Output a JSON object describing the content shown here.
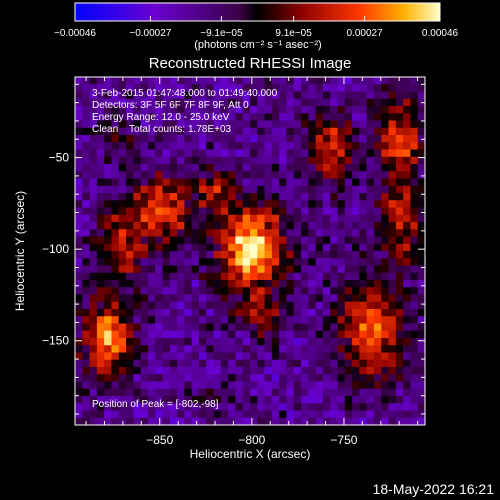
{
  "chart_data": {
    "type": "heatmap",
    "title": "Reconstructed RHESSI Image",
    "xlabel": "Heliocentric X (arcsec)",
    "ylabel": "Heliocentric Y (arcsec)",
    "xlim": [
      -896,
      -706
    ],
    "ylim": [
      -196,
      -6
    ],
    "x_ticks": [
      {
        "value": -850,
        "label": "−850"
      },
      {
        "value": -800,
        "label": "−800"
      },
      {
        "value": -750,
        "label": "−750"
      }
    ],
    "y_ticks": [
      {
        "value": -50,
        "label": "−50"
      },
      {
        "value": -100,
        "label": "−100"
      },
      {
        "value": -150,
        "label": "−150"
      }
    ],
    "annotations": [
      "3-Feb-2015 01:47:48.000 to 01:49:40.000",
      "Detectors: 3F 5F 6F 7F 8F 9F, Att 0",
      "Energy Range: 12.0 - 25.0 keV",
      "Clean    Total counts: 1.78E+03"
    ],
    "peak_label": "Position of Peak = [-802,-98]",
    "peak": [
      -802,
      -98
    ],
    "colorbar": {
      "range": [
        -0.00046,
        0.00046
      ],
      "tick_values": [
        -0.00046,
        -0.00027,
        -9.1e-05,
        9.1e-05,
        0.00027,
        0.00046
      ],
      "tick_labels": [
        "−0.00046",
        "−0.00027",
        "−9.1e−05",
        "9.1e−05",
        "0.00027",
        "0.00046"
      ],
      "unit_label": "(photons cm⁻² s⁻¹ asec⁻²)"
    },
    "sources": [
      {
        "x": -800,
        "y": -100,
        "amp": 1.0,
        "sx": 13,
        "sy": 17
      },
      {
        "x": -848,
        "y": -78,
        "amp": 0.68,
        "sx": 11,
        "sy": 13
      },
      {
        "x": -872,
        "y": -98,
        "amp": 0.5,
        "sx": 10,
        "sy": 16
      },
      {
        "x": -878,
        "y": -150,
        "amp": 0.82,
        "sx": 10,
        "sy": 15
      },
      {
        "x": -820,
        "y": -68,
        "amp": 0.4,
        "sx": 9,
        "sy": 9
      },
      {
        "x": -757,
        "y": -45,
        "amp": 0.62,
        "sx": 9,
        "sy": 13
      },
      {
        "x": -720,
        "y": -40,
        "amp": 0.7,
        "sx": 9,
        "sy": 17
      },
      {
        "x": -718,
        "y": -85,
        "amp": 0.55,
        "sx": 8,
        "sy": 14
      },
      {
        "x": -735,
        "y": -145,
        "amp": 0.72,
        "sx": 13,
        "sy": 19
      },
      {
        "x": -795,
        "y": -138,
        "amp": 0.38,
        "sx": 9,
        "sy": 8
      },
      {
        "x": -873,
        "y": -40,
        "amp": 0.3,
        "sx": 8,
        "sy": 6
      },
      {
        "x": -828,
        "y": -180,
        "amp": 0.22,
        "sx": 11,
        "sy": 6
      }
    ]
  },
  "footer": {
    "timestamp": "18-May-2022 16:21"
  },
  "colors": {
    "background": "#000000",
    "foreground": "#ffffff"
  }
}
